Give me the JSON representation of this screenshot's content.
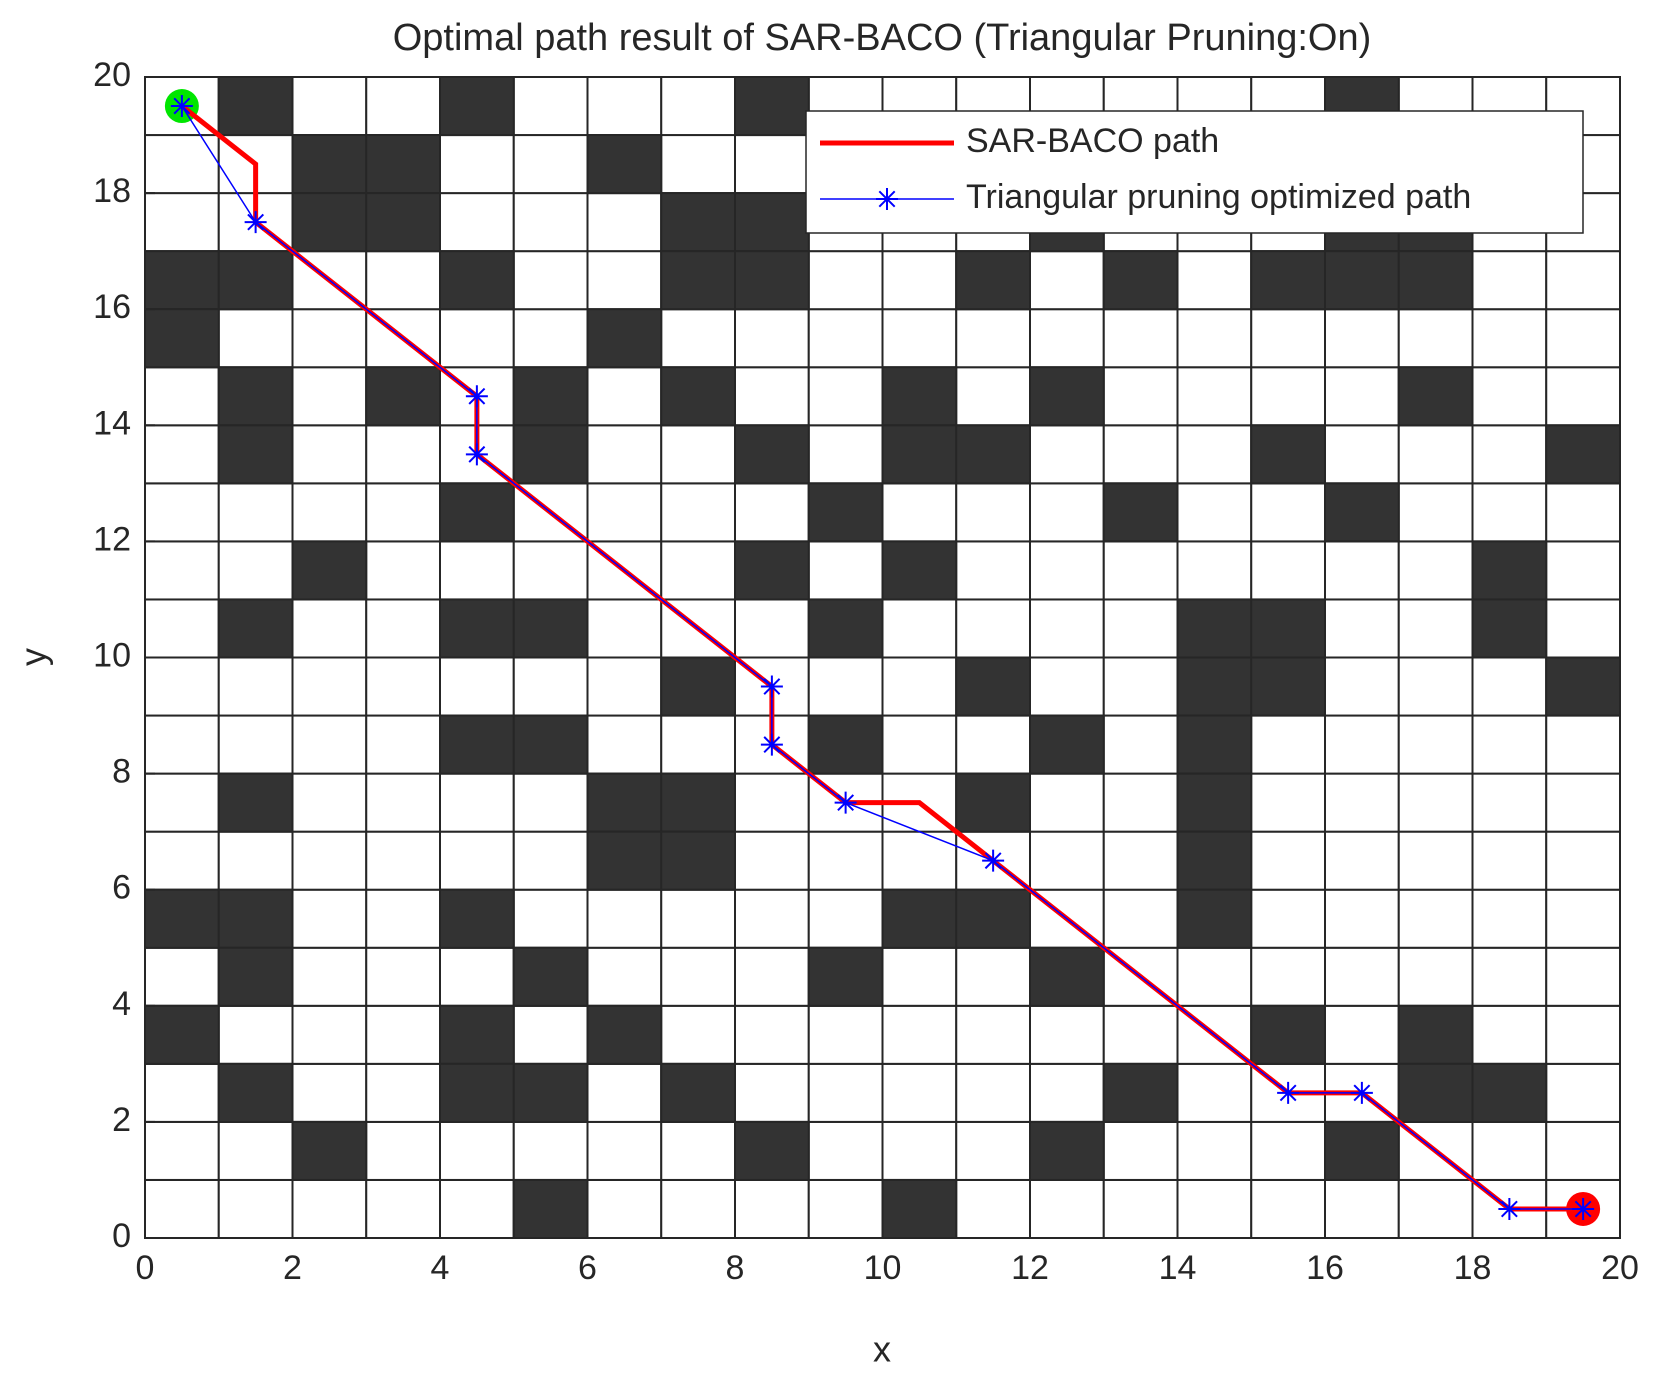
{
  "chart_data": {
    "type": "line",
    "title": "Optimal path result of SAR-BACO (Triangular Pruning:On)",
    "x_label": "x",
    "y_label": "y",
    "xlim": [
      0,
      20
    ],
    "ylim": [
      0,
      20
    ],
    "xticks": [
      0,
      2,
      4,
      6,
      8,
      10,
      12,
      14,
      16,
      18,
      20
    ],
    "yticks": [
      0,
      2,
      4,
      6,
      8,
      10,
      12,
      14,
      16,
      18,
      20
    ],
    "legend": "upper right",
    "obstacle_color": "#333333",
    "obstacles": [
      [
        1,
        19
      ],
      [
        4,
        19
      ],
      [
        8,
        19
      ],
      [
        16,
        19
      ],
      [
        2,
        18
      ],
      [
        3,
        18
      ],
      [
        6,
        18
      ],
      [
        2,
        17
      ],
      [
        3,
        17
      ],
      [
        7,
        17
      ],
      [
        8,
        17
      ],
      [
        12,
        17
      ],
      [
        16,
        17
      ],
      [
        17,
        17
      ],
      [
        0,
        16
      ],
      [
        1,
        16
      ],
      [
        4,
        16
      ],
      [
        7,
        16
      ],
      [
        8,
        16
      ],
      [
        11,
        16
      ],
      [
        13,
        16
      ],
      [
        15,
        16
      ],
      [
        16,
        16
      ],
      [
        17,
        16
      ],
      [
        0,
        15
      ],
      [
        6,
        15
      ],
      [
        1,
        14
      ],
      [
        3,
        14
      ],
      [
        5,
        14
      ],
      [
        7,
        14
      ],
      [
        10,
        14
      ],
      [
        12,
        14
      ],
      [
        17,
        14
      ],
      [
        1,
        13
      ],
      [
        5,
        13
      ],
      [
        8,
        13
      ],
      [
        10,
        13
      ],
      [
        11,
        13
      ],
      [
        15,
        13
      ],
      [
        19,
        13
      ],
      [
        4,
        12
      ],
      [
        9,
        12
      ],
      [
        13,
        12
      ],
      [
        16,
        12
      ],
      [
        2,
        11
      ],
      [
        8,
        11
      ],
      [
        10,
        11
      ],
      [
        18,
        11
      ],
      [
        1,
        10
      ],
      [
        4,
        10
      ],
      [
        5,
        10
      ],
      [
        9,
        10
      ],
      [
        14,
        10
      ],
      [
        15,
        10
      ],
      [
        18,
        10
      ],
      [
        7,
        9
      ],
      [
        11,
        9
      ],
      [
        14,
        9
      ],
      [
        15,
        9
      ],
      [
        19,
        9
      ],
      [
        4,
        8
      ],
      [
        5,
        8
      ],
      [
        9,
        8
      ],
      [
        12,
        8
      ],
      [
        14,
        8
      ],
      [
        1,
        7
      ],
      [
        6,
        7
      ],
      [
        7,
        7
      ],
      [
        11,
        7
      ],
      [
        14,
        7
      ],
      [
        6,
        6
      ],
      [
        7,
        6
      ],
      [
        14,
        6
      ],
      [
        0,
        5
      ],
      [
        1,
        5
      ],
      [
        4,
        5
      ],
      [
        10,
        5
      ],
      [
        11,
        5
      ],
      [
        14,
        5
      ],
      [
        1,
        4
      ],
      [
        5,
        4
      ],
      [
        9,
        4
      ],
      [
        12,
        4
      ],
      [
        0,
        3
      ],
      [
        4,
        3
      ],
      [
        6,
        3
      ],
      [
        15,
        3
      ],
      [
        17,
        3
      ],
      [
        1,
        2
      ],
      [
        4,
        2
      ],
      [
        5,
        2
      ],
      [
        7,
        2
      ],
      [
        13,
        2
      ],
      [
        17,
        2
      ],
      [
        18,
        2
      ],
      [
        2,
        1
      ],
      [
        8,
        1
      ],
      [
        12,
        1
      ],
      [
        16,
        1
      ],
      [
        5,
        0
      ],
      [
        10,
        0
      ]
    ],
    "series": [
      {
        "name": "SAR-BACO path",
        "color": "#ff0000",
        "x": [
          0.5,
          1.5,
          1.5,
          4.5,
          4.5,
          8.5,
          8.5,
          9.5,
          10.5,
          11.5,
          15.5,
          16.5,
          18.5,
          19.5
        ],
        "values": [
          19.5,
          18.5,
          17.5,
          14.5,
          13.5,
          9.5,
          8.5,
          7.5,
          7.5,
          6.5,
          2.5,
          2.5,
          0.5,
          0.5
        ]
      },
      {
        "name": "Triangular pruning optimized path",
        "color": "#0000ff",
        "marker": "asterisk",
        "x": [
          0.5,
          1.5,
          4.5,
          4.5,
          8.5,
          8.5,
          9.5,
          11.5,
          15.5,
          16.5,
          18.5,
          19.5
        ],
        "values": [
          19.5,
          17.5,
          14.5,
          13.5,
          9.5,
          8.5,
          7.5,
          6.5,
          2.5,
          2.5,
          0.5,
          0.5
        ]
      }
    ],
    "points": [
      {
        "x": 0.5,
        "y": 19.5,
        "color": "#00e600"
      },
      {
        "x": 19.5,
        "y": 0.5,
        "color": "#ff0000"
      }
    ]
  }
}
